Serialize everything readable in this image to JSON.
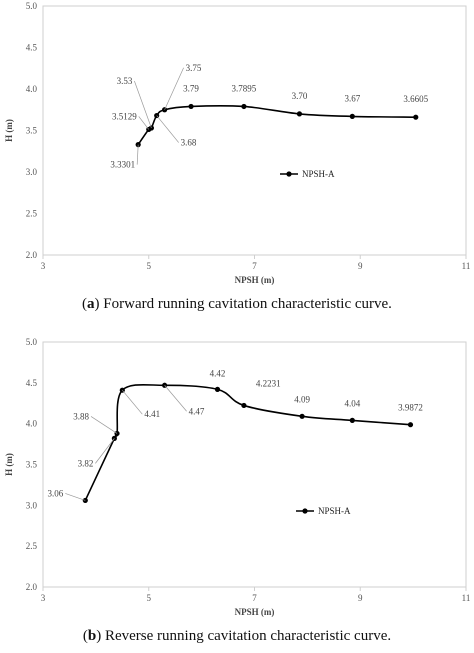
{
  "charts": [
    {
      "id": "a",
      "caption_letter": "a",
      "caption_text": ") Forward running cavitation characteristic curve.",
      "chart_data": {
        "type": "line",
        "xlabel": "NPSH (m)",
        "ylabel": "H (m)",
        "xlim": [
          3,
          11
        ],
        "ylim": [
          2.0,
          5.0
        ],
        "xticks": [
          "3",
          "5",
          "7",
          "9",
          "11"
        ],
        "yticks": [
          "2.0",
          "2.5",
          "3.0",
          "3.5",
          "4.0",
          "4.5",
          "5.0"
        ],
        "grid": false,
        "legend": "NPSH-A",
        "legend_position": "center-right",
        "series": [
          {
            "name": "NPSH-A",
            "x": [
              4.8,
              5.0,
              5.05,
              5.15,
              5.3,
              5.8,
              6.8,
              7.85,
              8.85,
              10.05
            ],
            "y": [
              3.3301,
              3.5129,
              3.53,
              3.68,
              3.75,
              3.79,
              3.7895,
              3.7,
              3.67,
              3.6605
            ]
          }
        ],
        "annotations": [
          "3.3301",
          "3.5129",
          "3.53",
          "3.68",
          "3.75",
          "3.79",
          "3.7895",
          "3.70",
          "3.67",
          "3.6605"
        ]
      }
    },
    {
      "id": "b",
      "caption_letter": "b",
      "caption_text": ") Reverse running cavitation characteristic curve.",
      "chart_data": {
        "type": "line",
        "xlabel": "NPSH (m)",
        "ylabel": "H (m)",
        "xlim": [
          3,
          11
        ],
        "ylim": [
          2.0,
          5.0
        ],
        "xticks": [
          "3",
          "5",
          "7",
          "9",
          "11"
        ],
        "yticks": [
          "2.0",
          "2.5",
          "3.0",
          "3.5",
          "4.0",
          "4.5",
          "5.0"
        ],
        "grid": false,
        "legend": "NPSH-A",
        "legend_position": "center-right",
        "series": [
          {
            "name": "NPSH-A",
            "x": [
              3.8,
              4.35,
              4.4,
              4.5,
              5.3,
              6.3,
              6.8,
              7.9,
              8.85,
              9.95
            ],
            "y": [
              3.06,
              3.82,
              3.88,
              4.41,
              4.47,
              4.42,
              4.2231,
              4.09,
              4.04,
              3.9872
            ]
          }
        ],
        "annotations": [
          "3.06",
          "3.82",
          "3.88",
          "4.41",
          "4.47",
          "4.42",
          "4.2231",
          "4.09",
          "4.04",
          "3.9872"
        ]
      }
    }
  ]
}
